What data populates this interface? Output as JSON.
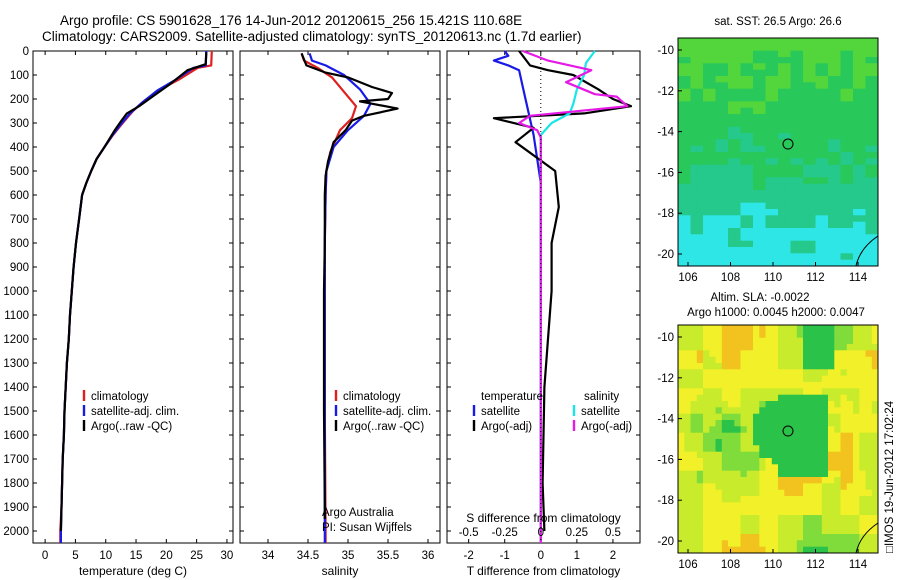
{
  "titles": {
    "line1": "Argo profile: CS 5901628_176 14-Jun-2012 20120615_256 15.421S 110.68E",
    "line2": "Climatology: CARS2009. Satellite-adjusted climatology: synTS_20120613.nc (1.7d earlier)"
  },
  "colors": {
    "climatology": "#e02020",
    "satellite": "#1a1ae6",
    "argo": "#000000",
    "sal_satellite": "#19e6e6",
    "sal_argo": "#e619e6"
  },
  "chart_data": [
    {
      "type": "line",
      "id": "temperature",
      "xlabel": "temperature (deg C)",
      "xlim": [
        -2,
        31
      ],
      "ylim": [
        2050,
        0
      ],
      "xticks": [
        0,
        5,
        10,
        15,
        20,
        25,
        30
      ],
      "yticks": [
        0,
        100,
        200,
        300,
        400,
        500,
        600,
        700,
        800,
        900,
        1000,
        1100,
        1200,
        1300,
        1400,
        1500,
        1600,
        1700,
        1800,
        1900,
        2000
      ],
      "legend": [
        "climatology",
        "satellite-adj. clim.",
        "Argo(..raw -QC)"
      ],
      "series": [
        {
          "name": "climatology",
          "color": "#e02020",
          "points": [
            [
              27.5,
              0
            ],
            [
              27.4,
              60
            ],
            [
              25.2,
              70
            ],
            [
              22,
              120
            ],
            [
              19,
              160
            ],
            [
              16.5,
              205
            ],
            [
              14.5,
              250
            ],
            [
              12.8,
              300
            ],
            [
              11.2,
              350
            ],
            [
              9.8,
              400
            ],
            [
              8.5,
              450
            ],
            [
              7.6,
              500
            ],
            [
              6.8,
              550
            ],
            [
              6.1,
              600
            ],
            [
              5.6,
              700
            ],
            [
              5.1,
              800
            ],
            [
              4.7,
              900
            ],
            [
              4.4,
              1000
            ],
            [
              4.1,
              1100
            ],
            [
              3.9,
              1200
            ],
            [
              3.6,
              1300
            ],
            [
              3.4,
              1400
            ],
            [
              3.2,
              1500
            ],
            [
              3.1,
              1600
            ],
            [
              2.9,
              1700
            ],
            [
              2.8,
              1800
            ],
            [
              2.7,
              1900
            ],
            [
              2.5,
              2000
            ],
            [
              2.5,
              2050
            ]
          ]
        },
        {
          "name": "satellite-adj. clim.",
          "color": "#1a1ae6",
          "points": [
            [
              26.6,
              0
            ],
            [
              26.5,
              60
            ],
            [
              24.5,
              70
            ],
            [
              21.2,
              125
            ],
            [
              18.5,
              165
            ],
            [
              16,
              215
            ],
            [
              14,
              260
            ],
            [
              12.5,
              305
            ],
            [
              11,
              355
            ],
            [
              9.8,
              400
            ],
            [
              8.5,
              450
            ],
            [
              7.6,
              500
            ],
            [
              6.8,
              550
            ],
            [
              6.1,
              600
            ],
            [
              5.6,
              700
            ],
            [
              5.1,
              800
            ],
            [
              4.7,
              900
            ],
            [
              4.4,
              1000
            ],
            [
              4.1,
              1100
            ],
            [
              3.9,
              1200
            ],
            [
              3.6,
              1300
            ],
            [
              3.4,
              1400
            ],
            [
              3.2,
              1500
            ],
            [
              3.1,
              1600
            ],
            [
              2.9,
              1700
            ],
            [
              2.8,
              1800
            ],
            [
              2.7,
              1900
            ],
            [
              2.6,
              2000
            ],
            [
              2.6,
              2050
            ]
          ]
        },
        {
          "name": "Argo(..raw -QC)",
          "color": "#000000",
          "points": [
            [
              26.6,
              5
            ],
            [
              26.5,
              55
            ],
            [
              23.5,
              80
            ],
            [
              20.5,
              140
            ],
            [
              18,
              185
            ],
            [
              15.5,
              230
            ],
            [
              13.5,
              260
            ],
            [
              12.6,
              290
            ],
            [
              11.5,
              330
            ],
            [
              9.8,
              400
            ],
            [
              8.5,
              450
            ],
            [
              7.6,
              500
            ],
            [
              6.8,
              550
            ],
            [
              6.1,
              600
            ],
            [
              5.6,
              700
            ],
            [
              5.1,
              800
            ],
            [
              4.7,
              900
            ],
            [
              4.4,
              1000
            ],
            [
              4.1,
              1100
            ],
            [
              3.9,
              1200
            ],
            [
              3.6,
              1300
            ],
            [
              3.4,
              1400
            ],
            [
              3.2,
              1500
            ],
            [
              3.1,
              1600
            ],
            [
              2.9,
              1700
            ],
            [
              2.8,
              1800
            ],
            [
              2.7,
              1900
            ],
            [
              2.6,
              2000
            ]
          ]
        }
      ]
    },
    {
      "type": "line",
      "id": "salinity",
      "xlabel": "salinity",
      "xlim": [
        33.65,
        36.15
      ],
      "ylim": [
        2050,
        0
      ],
      "xticks": [
        34,
        34.5,
        35,
        35.5,
        36
      ],
      "legend": [
        "climatology",
        "satellite-adj. clim.",
        "Argo(..raw -QC)"
      ],
      "annotation": [
        "Argo Australia",
        "PI: Susan Wijffels"
      ],
      "series": [
        {
          "name": "climatology",
          "color": "#e02020",
          "points": [
            [
              34.42,
              10
            ],
            [
              34.45,
              40
            ],
            [
              34.62,
              70
            ],
            [
              34.8,
              110
            ],
            [
              34.95,
              170
            ],
            [
              35.1,
              230
            ],
            [
              35.05,
              280
            ],
            [
              34.9,
              330
            ],
            [
              34.78,
              420
            ],
            [
              34.73,
              500
            ],
            [
              34.72,
              600
            ],
            [
              34.71,
              800
            ],
            [
              34.71,
              1000
            ],
            [
              34.71,
              1500
            ],
            [
              34.72,
              2000
            ],
            [
              34.72,
              2050
            ]
          ]
        },
        {
          "name": "satellite-adj. clim.",
          "color": "#1a1ae6",
          "points": [
            [
              34.52,
              10
            ],
            [
              34.55,
              40
            ],
            [
              34.72,
              60
            ],
            [
              34.95,
              100
            ],
            [
              35.15,
              160
            ],
            [
              35.28,
              220
            ],
            [
              35.2,
              270
            ],
            [
              35.0,
              330
            ],
            [
              34.82,
              400
            ],
            [
              34.73,
              500
            ],
            [
              34.72,
              600
            ],
            [
              34.71,
              800
            ],
            [
              34.71,
              1000
            ],
            [
              34.71,
              1500
            ],
            [
              34.71,
              2000
            ],
            [
              34.71,
              2050
            ]
          ]
        },
        {
          "name": "Argo(..raw -QC)",
          "color": "#000000",
          "points": [
            [
              34.42,
              10
            ],
            [
              34.48,
              60
            ],
            [
              34.72,
              90
            ],
            [
              35.0,
              110
            ],
            [
              35.3,
              150
            ],
            [
              35.55,
              175
            ],
            [
              35.5,
              200
            ],
            [
              35.15,
              210
            ],
            [
              35.62,
              240
            ],
            [
              35.2,
              270
            ],
            [
              35.05,
              290
            ],
            [
              34.97,
              330
            ],
            [
              34.82,
              380
            ],
            [
              34.75,
              460
            ],
            [
              34.72,
              520
            ],
            [
              34.71,
              600
            ],
            [
              34.71,
              800
            ],
            [
              34.7,
              1000
            ],
            [
              34.7,
              1500
            ],
            [
              34.71,
              1900
            ],
            [
              34.71,
              1950
            ]
          ]
        }
      ]
    },
    {
      "type": "line",
      "id": "difference",
      "xlabel": "T difference from climatology",
      "xlabel2": "S difference from climatology",
      "xlim": [
        -2.6,
        2.75
      ],
      "ylim": [
        2050,
        0
      ],
      "xticks": [
        -2,
        -1,
        0,
        1,
        2
      ],
      "sticks": [
        "-0.5",
        "-0.25",
        "0",
        "0.25",
        "0.5"
      ],
      "legend_left_title": "temperature",
      "legend_left": [
        "satellite",
        "Argo(-adj)"
      ],
      "legend_right_title": "salinity",
      "legend_right": [
        "satellite",
        "Argo(-adj)"
      ],
      "series": [
        {
          "name": "satellite",
          "color": "#1a1ae6",
          "points": [
            [
              -1.0,
              0
            ],
            [
              -0.9,
              20
            ],
            [
              -1.3,
              40
            ],
            [
              -0.9,
              60
            ],
            [
              -0.6,
              80
            ],
            [
              -0.5,
              150
            ],
            [
              -0.35,
              250
            ],
            [
              -0.2,
              350
            ],
            [
              -0.1,
              450
            ],
            [
              0.0,
              550
            ],
            [
              0.0,
              1000
            ],
            [
              0.0,
              2000
            ],
            [
              0.0,
              2050
            ]
          ]
        },
        {
          "name": "Argo(-adj)",
          "color": "#000000",
          "points": [
            [
              -0.6,
              0
            ],
            [
              -0.5,
              20
            ],
            [
              -0.3,
              60
            ],
            [
              0.2,
              80
            ],
            [
              0.9,
              100
            ],
            [
              1.6,
              160
            ],
            [
              2.0,
              200
            ],
            [
              2.5,
              230
            ],
            [
              1.2,
              260
            ],
            [
              -1.3,
              280
            ],
            [
              -0.2,
              320
            ],
            [
              -0.7,
              380
            ],
            [
              0.4,
              500
            ],
            [
              0.5,
              650
            ],
            [
              0.3,
              800
            ],
            [
              0.3,
              1000
            ],
            [
              0.1,
              1400
            ],
            [
              0.05,
              1800
            ],
            [
              0.1,
              2000
            ]
          ]
        },
        {
          "name": "S satellite",
          "color": "#19e6e6",
          "points": [
            [
              1.5,
              0
            ],
            [
              1.25,
              50
            ],
            [
              1.2,
              100
            ],
            [
              1.0,
              160
            ],
            [
              0.9,
              220
            ],
            [
              0.8,
              260
            ],
            [
              0.3,
              300
            ],
            [
              0.0,
              350
            ],
            [
              0.0,
              500
            ],
            [
              0.0,
              1000
            ],
            [
              0.0,
              2000
            ],
            [
              0.0,
              2050
            ]
          ]
        },
        {
          "name": "S Argo(-adj)",
          "color": "#e619e6",
          "points": [
            [
              -0.5,
              0
            ],
            [
              0.2,
              40
            ],
            [
              1.4,
              80
            ],
            [
              0.7,
              130
            ],
            [
              1.5,
              180
            ],
            [
              2.1,
              190
            ],
            [
              2.4,
              230
            ],
            [
              -0.3,
              270
            ],
            [
              -0.6,
              300
            ],
            [
              -0.1,
              330
            ],
            [
              0.0,
              360
            ],
            [
              0.0,
              600
            ],
            [
              0.0,
              2050
            ]
          ]
        }
      ]
    }
  ],
  "maps": [
    {
      "id": "sst",
      "title": "sat. SST: 26.5 Argo: 26.6",
      "yticks": [
        "-10",
        "-12",
        "-14",
        "-16",
        "-18",
        "-20"
      ],
      "xticks": [
        "106",
        "108",
        "110",
        "112",
        "114"
      ]
    },
    {
      "id": "sla",
      "title1": "Altim. SLA: -0.0022",
      "title2": "Argo h1000: 0.0045 h2000: 0.0047",
      "yticks": [
        "-10",
        "-12",
        "-14",
        "-16",
        "-18",
        "-20"
      ],
      "xticks": [
        "106",
        "108",
        "110",
        "112",
        "114"
      ]
    }
  ],
  "footer": "□IMOS 19-Jun-2012 17:02:24"
}
